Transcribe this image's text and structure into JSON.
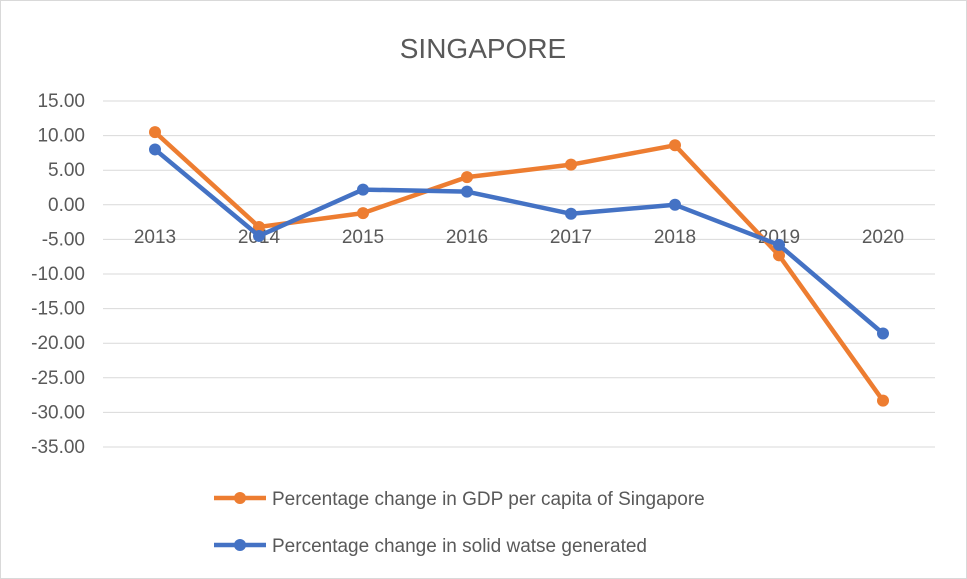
{
  "chart_data": {
    "type": "line",
    "title": "SINGAPORE",
    "xlabel": "",
    "ylabel": "",
    "categories": [
      "2013",
      "2014",
      "2015",
      "2016",
      "2017",
      "2018",
      "2019",
      "2020"
    ],
    "y_ticks": [
      "15.00",
      "10.00",
      "5.00",
      "0.00",
      "-5.00",
      "-10.00",
      "-15.00",
      "-20.00",
      "-25.00",
      "-30.00",
      "-35.00"
    ],
    "ylim": [
      -35,
      15
    ],
    "grid": true,
    "legend_position": "bottom",
    "series": [
      {
        "name": "Percentage change in GDP per capita of Singapore",
        "color": "#ed7d31",
        "values": [
          10.5,
          -3.2,
          -1.2,
          4.0,
          5.8,
          8.6,
          -7.3,
          -28.3
        ]
      },
      {
        "name": "Percentage change in solid watse generated",
        "color": "#4472c4",
        "values": [
          8.0,
          -4.5,
          2.2,
          1.9,
          -1.3,
          0.0,
          -5.8,
          -18.6
        ]
      }
    ]
  }
}
